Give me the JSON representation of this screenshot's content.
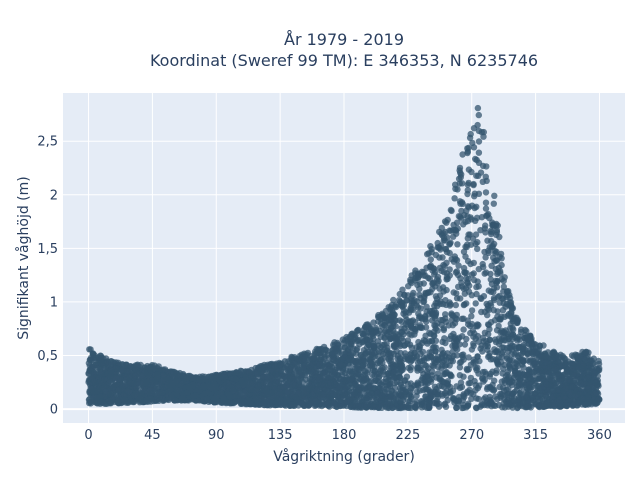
{
  "chart_data": {
    "type": "scatter",
    "title_line1": "År 1979 - 2019",
    "title_line2": "Koordinat (Sweref 99 TM): E 346353, N 6235746",
    "xlabel": "Vågriktning (grader)",
    "ylabel": "Signifikant våghöjd (m)",
    "xlim": [
      -18,
      378
    ],
    "ylim": [
      -0.13,
      2.95
    ],
    "xticks": [
      0,
      45,
      90,
      135,
      180,
      225,
      270,
      315,
      360
    ],
    "xtick_labels": [
      "0",
      "45",
      "90",
      "135",
      "180",
      "225",
      "270",
      "315",
      "360"
    ],
    "yticks": [
      0,
      0.5,
      1,
      1.5,
      2,
      2.5
    ],
    "ytick_labels": [
      "0",
      "0,5",
      "1",
      "1,5",
      "2",
      "2,5"
    ],
    "grid": true,
    "marker_color": "#34566f",
    "plot_bg": "#e5ecf6",
    "envelope": {
      "direction": [
        0,
        15,
        30,
        45,
        60,
        75,
        90,
        105,
        120,
        135,
        150,
        165,
        180,
        195,
        210,
        220,
        230,
        240,
        250,
        258,
        265,
        270,
        275,
        280,
        285,
        290,
        295,
        300,
        310,
        320,
        330,
        340,
        350,
        360
      ],
      "min_height": [
        0.05,
        0.05,
        0.06,
        0.07,
        0.08,
        0.08,
        0.06,
        0.05,
        0.04,
        0.03,
        0.03,
        0.02,
        0.02,
        0.01,
        0.01,
        0.01,
        0.01,
        0.01,
        0.01,
        0.01,
        0.01,
        0.01,
        0.01,
        0.01,
        0.01,
        0.01,
        0.01,
        0.01,
        0.01,
        0.02,
        0.02,
        0.03,
        0.04,
        0.05
      ],
      "max_height": [
        0.58,
        0.45,
        0.42,
        0.42,
        0.35,
        0.3,
        0.32,
        0.35,
        0.4,
        0.45,
        0.52,
        0.58,
        0.66,
        0.78,
        0.95,
        1.1,
        1.3,
        1.5,
        1.75,
        2.1,
        2.45,
        2.7,
        2.85,
        2.6,
        2.1,
        1.55,
        1.15,
        0.9,
        0.7,
        0.6,
        0.52,
        0.5,
        0.55,
        0.45
      ]
    }
  }
}
